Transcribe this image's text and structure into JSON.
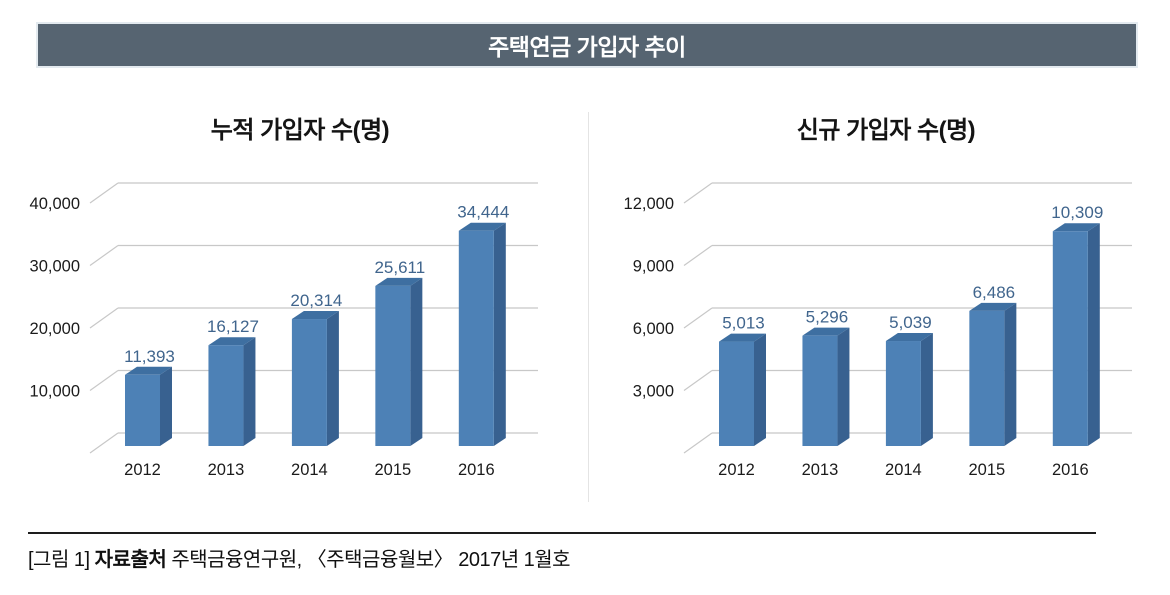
{
  "header": {
    "title": "주택연금 가입자 추이"
  },
  "caption": {
    "figure_label": "[그림 1]",
    "source_label": "자료출처",
    "source_text": "주택금융연구원, 〈주택금융월보〉 2017년 1월호"
  },
  "colors": {
    "header_bg": "#566471",
    "bar_front": "#4d81b6",
    "bar_top": "#3e6fa1",
    "bar_side": "#386190",
    "gridline": "#c8c8c8",
    "value_label": "#40658d",
    "axis_text": "#1b1b1b"
  },
  "chart_data": [
    {
      "type": "bar",
      "style": "3d-bar",
      "title": "누적 가입자 수(명)",
      "categories": [
        "2012",
        "2013",
        "2014",
        "2015",
        "2016"
      ],
      "values": [
        11393,
        16127,
        20314,
        25611,
        34444
      ],
      "value_labels": [
        "11,393",
        "16,127",
        "20,314",
        "25,611",
        "34,444"
      ],
      "y_ticks": [
        "40,000",
        "30,000",
        "20,000",
        "10,000"
      ],
      "y_tick_values": [
        40000,
        30000,
        20000,
        10000
      ],
      "ylim": [
        0,
        40000
      ],
      "xlabel": "",
      "ylabel": "",
      "grid": true,
      "legend": false
    },
    {
      "type": "bar",
      "style": "3d-bar",
      "title": "신규 가입자 수(명)",
      "categories": [
        "2012",
        "2013",
        "2014",
        "2015",
        "2016"
      ],
      "values": [
        5013,
        5296,
        5039,
        6486,
        10309
      ],
      "value_labels": [
        "5,013",
        "5,296",
        "5,039",
        "6,486",
        "10,309"
      ],
      "y_ticks": [
        "12,000",
        "9,000",
        "6,000",
        "3,000"
      ],
      "y_tick_values": [
        12000,
        9000,
        6000,
        3000
      ],
      "ylim": [
        0,
        12000
      ],
      "xlabel": "",
      "ylabel": "",
      "grid": true,
      "legend": false
    }
  ]
}
